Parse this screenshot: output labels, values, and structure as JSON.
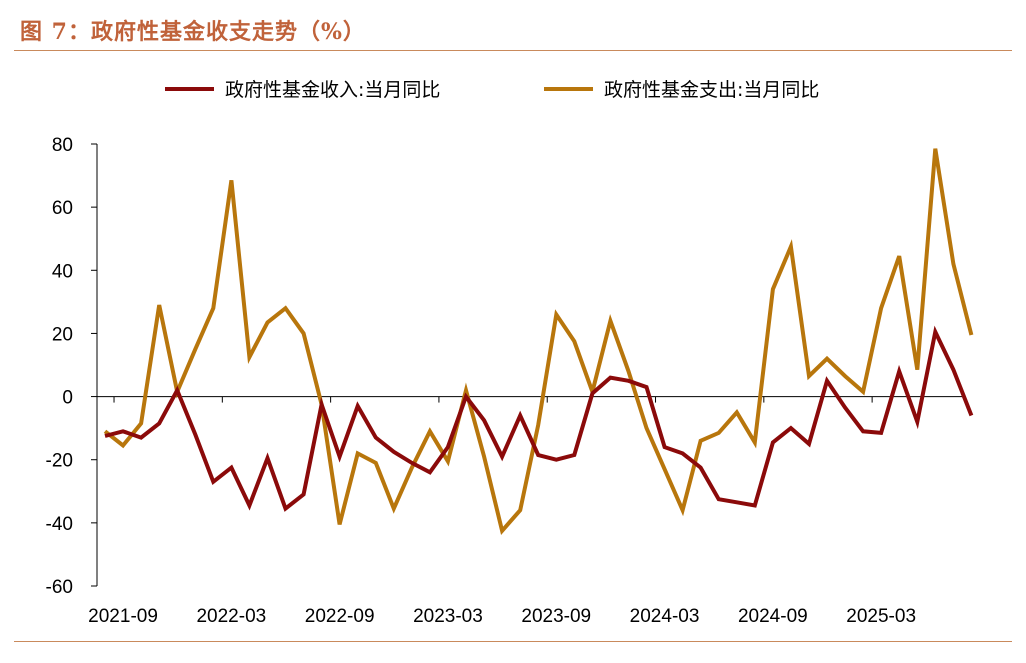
{
  "figure": {
    "title": "图 7：政府性基金收支走势（%）"
  },
  "chart_data": {
    "type": "line",
    "title": "",
    "xlabel": "",
    "ylabel": "",
    "ylim": [
      -60,
      80
    ],
    "yticks": [
      80,
      60,
      40,
      20,
      0,
      -20,
      -40,
      -60
    ],
    "xtick_labels": [
      "2021-09",
      "2022-03",
      "2022-09",
      "2023-03",
      "2023-09",
      "2024-03",
      "2024-09",
      "2025-03"
    ],
    "x": [
      "2021-08",
      "2021-09",
      "2021-10",
      "2021-11",
      "2021-12",
      "2022-01",
      "2022-02",
      "2022-03",
      "2022-04",
      "2022-05",
      "2022-06",
      "2022-07",
      "2022-08",
      "2022-09",
      "2022-10",
      "2022-11",
      "2022-12",
      "2023-01",
      "2023-02",
      "2023-03",
      "2023-04",
      "2023-05",
      "2023-06",
      "2023-07",
      "2023-08",
      "2023-09",
      "2023-10",
      "2023-11",
      "2023-12",
      "2024-01",
      "2024-02",
      "2024-03",
      "2024-04",
      "2024-05",
      "2024-06",
      "2024-07",
      "2024-08",
      "2024-09",
      "2024-10",
      "2024-11",
      "2024-12",
      "2025-01",
      "2025-02",
      "2025-03",
      "2025-04",
      "2025-05",
      "2025-06",
      "2025-07",
      "2025-08"
    ],
    "legend_position": "top",
    "grid": false,
    "series": [
      {
        "name": "政府性基金收入:当月同比",
        "color": "#8b0a0a",
        "values": [
          -12.5,
          -11,
          -13,
          -8.5,
          2,
          -12,
          -27,
          -22.5,
          -34.5,
          -19.5,
          -35.5,
          -31,
          -2.5,
          -19,
          -3,
          -13,
          -17.5,
          -21,
          -24,
          -16,
          0,
          -7.5,
          -19,
          -6,
          -18.5,
          -20,
          -18.5,
          1,
          6,
          5,
          3,
          -16,
          -18,
          -22.5,
          -32.5,
          -33.5,
          -34.5,
          -14.5,
          -10,
          -15,
          5,
          -3.5,
          -11,
          -11.5,
          8,
          -8,
          20.5,
          8.5,
          -6
        ]
      },
      {
        "name": "政府性基金支出:当月同比",
        "color": "#b8760c",
        "values": [
          -11,
          -15.5,
          -8.5,
          29,
          1.5,
          15,
          28,
          68.5,
          12.5,
          23.5,
          28,
          20,
          -2.5,
          -40.5,
          -18,
          -21,
          -35.5,
          -22.5,
          -11,
          -20.5,
          2,
          -19,
          -42.5,
          -36,
          -9,
          26,
          17.5,
          1.5,
          24,
          8,
          -10,
          -23,
          -36,
          -14,
          -11.5,
          -5,
          -14.5,
          34,
          47.5,
          6.5,
          12,
          6.5,
          1.5,
          28,
          44.5,
          8.5,
          78.5,
          42,
          19.5
        ]
      }
    ]
  }
}
